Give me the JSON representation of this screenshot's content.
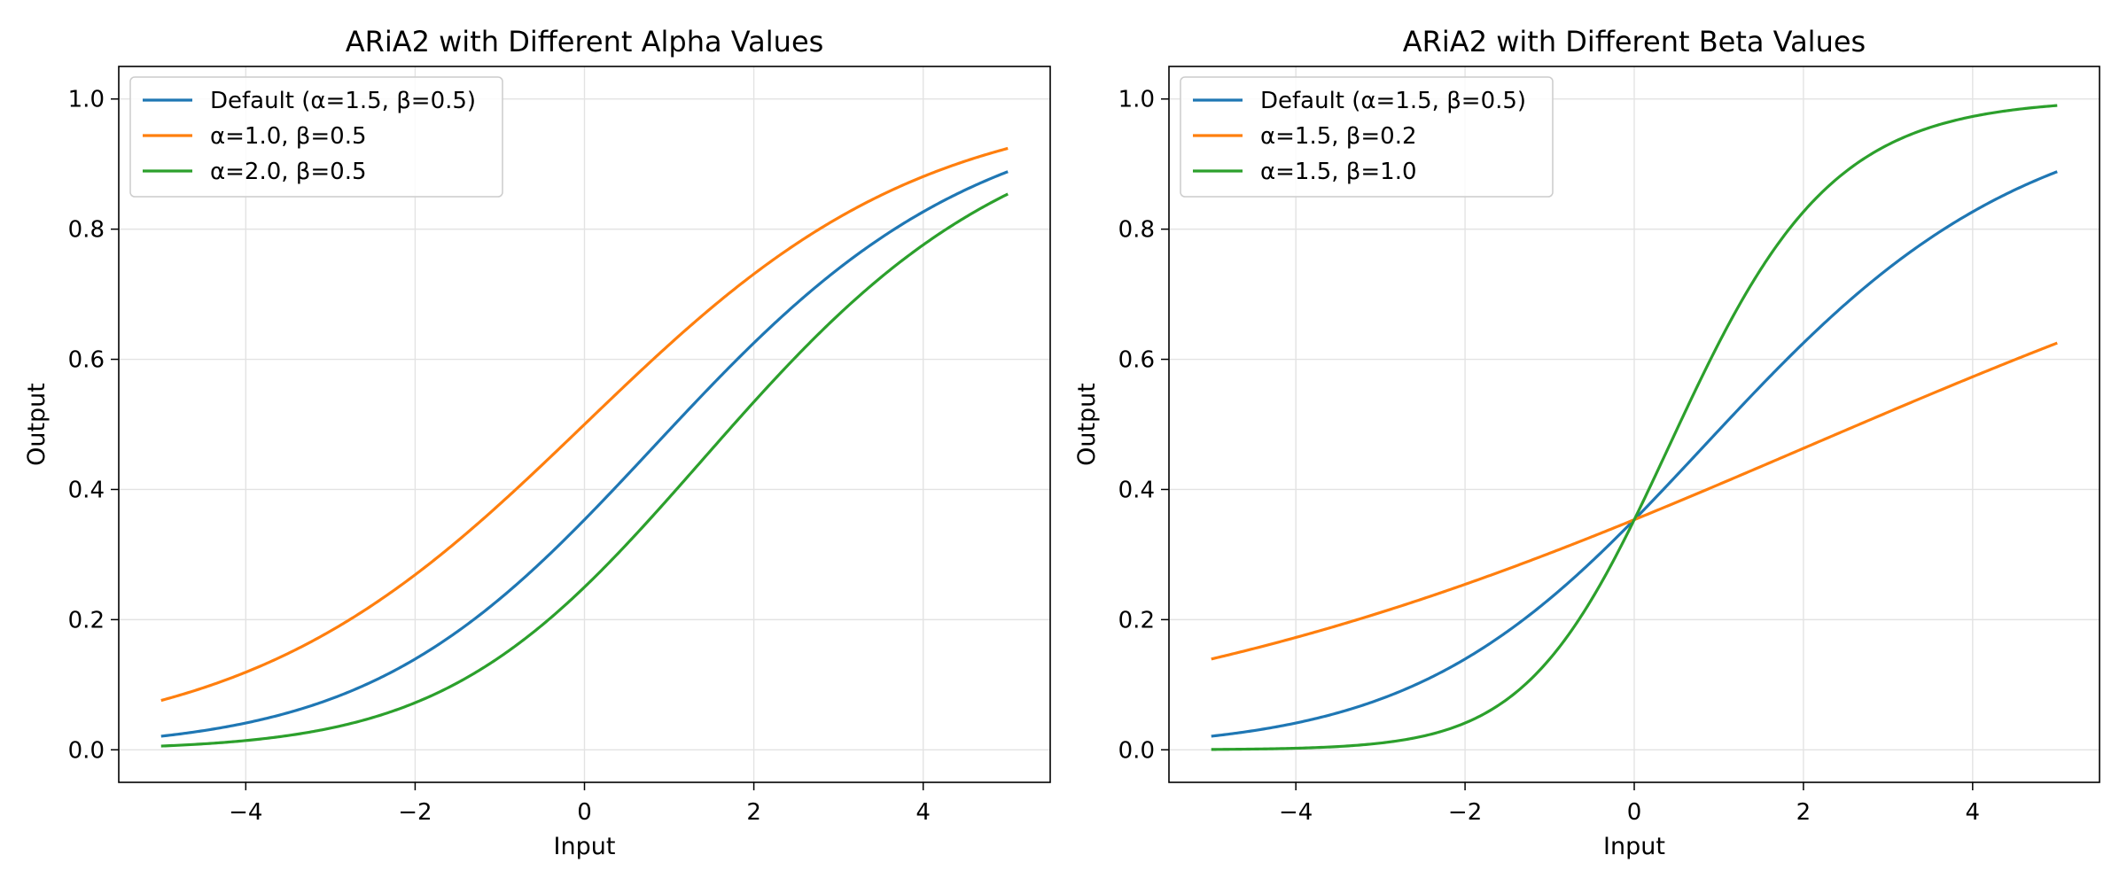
{
  "chart_data": [
    {
      "type": "line",
      "title": "ARiA2 with Different Alpha Values",
      "xlabel": "Input",
      "ylabel": "Output",
      "xlim": [
        -5.5,
        5.5
      ],
      "ylim": [
        -0.05,
        1.05
      ],
      "xticks": [
        -4,
        -2,
        0,
        2,
        4
      ],
      "yticks": [
        0.0,
        0.2,
        0.4,
        0.6,
        0.8,
        1.0
      ],
      "xtick_labels": [
        "−4",
        "−2",
        "0",
        "2",
        "4"
      ],
      "ytick_labels": [
        "0.0",
        "0.2",
        "0.4",
        "0.6",
        "0.8",
        "1.0"
      ],
      "x_range": [
        -5,
        5
      ],
      "grid": true,
      "legend_position": "top-left",
      "series": [
        {
          "name": "Default (α=1.5, β=0.5)",
          "alpha": 1.5,
          "beta": 0.5,
          "color": "#1f77b4"
        },
        {
          "name": "α=1.0, β=0.5",
          "alpha": 1.0,
          "beta": 0.5,
          "color": "#ff7f0e"
        },
        {
          "name": "α=2.0, β=0.5",
          "alpha": 2.0,
          "beta": 0.5,
          "color": "#2ca02c"
        }
      ]
    },
    {
      "type": "line",
      "title": "ARiA2 with Different Beta Values",
      "xlabel": "Input",
      "ylabel": "Output",
      "xlim": [
        -5.5,
        5.5
      ],
      "ylim": [
        -0.05,
        1.05
      ],
      "xticks": [
        -4,
        -2,
        0,
        2,
        4
      ],
      "yticks": [
        0.0,
        0.2,
        0.4,
        0.6,
        0.8,
        1.0
      ],
      "xtick_labels": [
        "−4",
        "−2",
        "0",
        "2",
        "4"
      ],
      "ytick_labels": [
        "0.0",
        "0.2",
        "0.4",
        "0.6",
        "0.8",
        "1.0"
      ],
      "x_range": [
        -5,
        5
      ],
      "grid": true,
      "legend_position": "top-left",
      "series": [
        {
          "name": "Default (α=1.5, β=0.5)",
          "alpha": 1.5,
          "beta": 0.5,
          "color": "#1f77b4"
        },
        {
          "name": "α=1.5, β=0.2",
          "alpha": 1.5,
          "beta": 0.2,
          "color": "#ff7f0e"
        },
        {
          "name": "α=1.5, β=1.0",
          "alpha": 1.5,
          "beta": 1.0,
          "color": "#2ca02c"
        }
      ]
    }
  ]
}
